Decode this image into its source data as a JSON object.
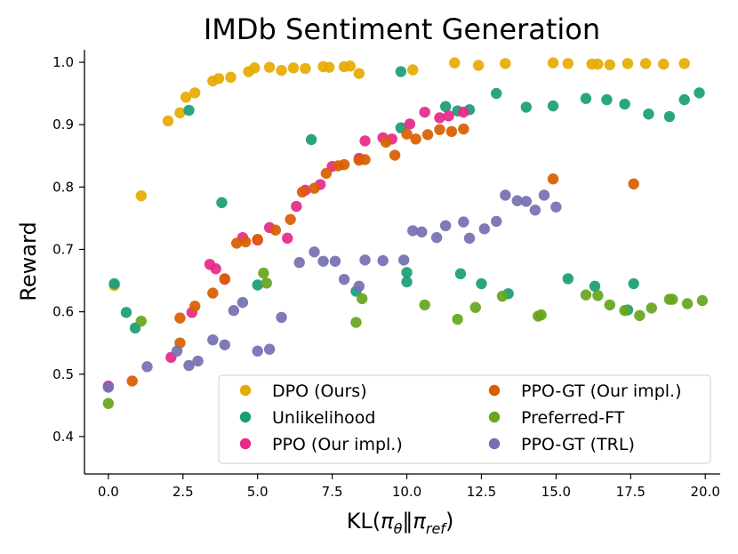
{
  "chart_data": {
    "type": "scatter",
    "title": "IMDb Sentiment Generation",
    "xlabel": {
      "prefix": "KL(",
      "pi": "π",
      "theta": "θ",
      "sep": "‖",
      "ref": "ref",
      "suffix": ")"
    },
    "ylabel": "Reward",
    "xlim": [
      -0.8,
      20.5
    ],
    "ylim": [
      0.34,
      1.02
    ],
    "xticks": [
      0.0,
      2.5,
      5.0,
      7.5,
      10.0,
      12.5,
      15.0,
      17.5,
      20.0
    ],
    "xtick_labels": [
      "0.0",
      "2.5",
      "5.0",
      "7.5",
      "10.0",
      "12.5",
      "15.0",
      "17.5",
      "20.0"
    ],
    "yticks": [
      0.4,
      0.5,
      0.6,
      0.7,
      0.8,
      0.9,
      1.0
    ],
    "ytick_labels": [
      "0.4",
      "0.5",
      "0.6",
      "0.7",
      "0.8",
      "0.9",
      "1.0"
    ],
    "legend_position": "lower-right",
    "series": [
      {
        "name": "DPO (Ours)",
        "color": "#E6AB02",
        "points": [
          [
            0.2,
            0.642
          ],
          [
            1.1,
            0.786
          ],
          [
            2.0,
            0.906
          ],
          [
            2.4,
            0.919
          ],
          [
            2.6,
            0.944
          ],
          [
            2.9,
            0.951
          ],
          [
            3.5,
            0.97
          ],
          [
            3.7,
            0.974
          ],
          [
            4.1,
            0.976
          ],
          [
            4.7,
            0.985
          ],
          [
            4.9,
            0.991
          ],
          [
            5.4,
            0.992
          ],
          [
            5.8,
            0.987
          ],
          [
            6.2,
            0.991
          ],
          [
            6.6,
            0.99
          ],
          [
            7.2,
            0.993
          ],
          [
            7.4,
            0.992
          ],
          [
            7.9,
            0.993
          ],
          [
            8.1,
            0.994
          ],
          [
            8.4,
            0.982
          ],
          [
            10.2,
            0.988
          ],
          [
            11.6,
            0.999
          ],
          [
            12.4,
            0.995
          ],
          [
            13.3,
            0.998
          ],
          [
            14.9,
            0.999
          ],
          [
            15.4,
            0.998
          ],
          [
            16.2,
            0.997
          ],
          [
            16.4,
            0.997
          ],
          [
            16.8,
            0.996
          ],
          [
            17.4,
            0.998
          ],
          [
            18.0,
            0.998
          ],
          [
            18.6,
            0.997
          ],
          [
            19.3,
            0.998
          ]
        ]
      },
      {
        "name": "Unlikelihood",
        "color": "#1B9E77",
        "points": [
          [
            0.2,
            0.645
          ],
          [
            0.6,
            0.599
          ],
          [
            0.9,
            0.574
          ],
          [
            2.7,
            0.923
          ],
          [
            3.8,
            0.775
          ],
          [
            5.0,
            0.643
          ],
          [
            6.8,
            0.876
          ],
          [
            8.3,
            0.633
          ],
          [
            9.8,
            0.985
          ],
          [
            9.8,
            0.895
          ],
          [
            10.0,
            0.648
          ],
          [
            10.0,
            0.663
          ],
          [
            11.3,
            0.929
          ],
          [
            11.7,
            0.922
          ],
          [
            11.8,
            0.661
          ],
          [
            12.1,
            0.924
          ],
          [
            12.5,
            0.645
          ],
          [
            13.0,
            0.95
          ],
          [
            13.4,
            0.629
          ],
          [
            14.0,
            0.928
          ],
          [
            14.9,
            0.93
          ],
          [
            15.4,
            0.653
          ],
          [
            16.0,
            0.942
          ],
          [
            16.3,
            0.641
          ],
          [
            16.7,
            0.94
          ],
          [
            17.3,
            0.933
          ],
          [
            17.4,
            0.603
          ],
          [
            17.6,
            0.645
          ],
          [
            18.1,
            0.917
          ],
          [
            18.8,
            0.913
          ],
          [
            19.3,
            0.94
          ],
          [
            19.8,
            0.951
          ]
        ]
      },
      {
        "name": "PPO (Our impl.)",
        "color": "#E7298A",
        "points": [
          [
            0.0,
            0.481
          ],
          [
            2.1,
            0.527
          ],
          [
            2.8,
            0.599
          ],
          [
            3.4,
            0.676
          ],
          [
            3.6,
            0.669
          ],
          [
            3.9,
            0.652
          ],
          [
            4.5,
            0.719
          ],
          [
            5.0,
            0.715
          ],
          [
            5.4,
            0.735
          ],
          [
            6.0,
            0.718
          ],
          [
            6.3,
            0.769
          ],
          [
            6.6,
            0.795
          ],
          [
            7.1,
            0.804
          ],
          [
            7.5,
            0.833
          ],
          [
            8.4,
            0.846
          ],
          [
            8.6,
            0.874
          ],
          [
            9.2,
            0.879
          ],
          [
            9.5,
            0.877
          ],
          [
            10.1,
            0.901
          ],
          [
            10.6,
            0.92
          ],
          [
            11.1,
            0.911
          ],
          [
            11.4,
            0.914
          ],
          [
            11.9,
            0.92
          ]
        ]
      },
      {
        "name": "PPO-GT (Our impl.)",
        "color": "#D95F02",
        "points": [
          [
            0.8,
            0.489
          ],
          [
            2.4,
            0.55
          ],
          [
            2.4,
            0.59
          ],
          [
            2.9,
            0.609
          ],
          [
            3.5,
            0.63
          ],
          [
            3.9,
            0.653
          ],
          [
            4.3,
            0.71
          ],
          [
            4.6,
            0.712
          ],
          [
            5.0,
            0.716
          ],
          [
            5.6,
            0.731
          ],
          [
            6.1,
            0.748
          ],
          [
            6.5,
            0.792
          ],
          [
            6.9,
            0.798
          ],
          [
            7.3,
            0.822
          ],
          [
            7.7,
            0.834
          ],
          [
            7.9,
            0.836
          ],
          [
            8.4,
            0.843
          ],
          [
            8.6,
            0.844
          ],
          [
            9.3,
            0.872
          ],
          [
            9.6,
            0.851
          ],
          [
            10.0,
            0.885
          ],
          [
            10.3,
            0.877
          ],
          [
            10.7,
            0.884
          ],
          [
            11.1,
            0.892
          ],
          [
            11.5,
            0.889
          ],
          [
            11.9,
            0.893
          ],
          [
            14.9,
            0.813
          ],
          [
            17.6,
            0.805
          ]
        ]
      },
      {
        "name": "PPO-GT (TRL)",
        "color": "#7570B3",
        "points": [
          [
            0.0,
            0.479
          ],
          [
            1.3,
            0.512
          ],
          [
            2.3,
            0.537
          ],
          [
            2.7,
            0.514
          ],
          [
            3.0,
            0.521
          ],
          [
            3.5,
            0.555
          ],
          [
            3.9,
            0.547
          ],
          [
            4.2,
            0.602
          ],
          [
            4.5,
            0.615
          ],
          [
            5.0,
            0.537
          ],
          [
            5.4,
            0.54
          ],
          [
            5.8,
            0.591
          ],
          [
            6.4,
            0.679
          ],
          [
            6.9,
            0.696
          ],
          [
            7.2,
            0.681
          ],
          [
            7.6,
            0.681
          ],
          [
            7.9,
            0.652
          ],
          [
            8.4,
            0.641
          ],
          [
            8.6,
            0.683
          ],
          [
            9.2,
            0.682
          ],
          [
            9.9,
            0.683
          ],
          [
            10.2,
            0.73
          ],
          [
            10.5,
            0.728
          ],
          [
            11.0,
            0.719
          ],
          [
            11.3,
            0.738
          ],
          [
            11.9,
            0.744
          ],
          [
            12.1,
            0.718
          ],
          [
            12.6,
            0.733
          ],
          [
            13.0,
            0.745
          ],
          [
            13.3,
            0.787
          ],
          [
            13.7,
            0.778
          ],
          [
            14.0,
            0.777
          ],
          [
            14.3,
            0.763
          ],
          [
            14.6,
            0.787
          ],
          [
            15.0,
            0.768
          ]
        ]
      },
      {
        "name": "Preferred-FT",
        "color": "#66A61E",
        "points": [
          [
            0.0,
            0.453
          ],
          [
            1.1,
            0.585
          ],
          [
            5.2,
            0.662
          ],
          [
            5.3,
            0.646
          ],
          [
            8.3,
            0.583
          ],
          [
            8.5,
            0.621
          ],
          [
            10.6,
            0.611
          ],
          [
            11.7,
            0.588
          ],
          [
            12.3,
            0.607
          ],
          [
            13.2,
            0.625
          ],
          [
            14.4,
            0.593
          ],
          [
            14.5,
            0.595
          ],
          [
            16.0,
            0.627
          ],
          [
            16.4,
            0.626
          ],
          [
            16.8,
            0.611
          ],
          [
            17.3,
            0.602
          ],
          [
            17.8,
            0.594
          ],
          [
            18.2,
            0.606
          ],
          [
            18.8,
            0.62
          ],
          [
            18.9,
            0.62
          ],
          [
            19.4,
            0.613
          ],
          [
            19.9,
            0.618
          ]
        ]
      }
    ],
    "legend_layout": [
      0,
      3,
      1,
      5,
      2,
      4
    ]
  }
}
